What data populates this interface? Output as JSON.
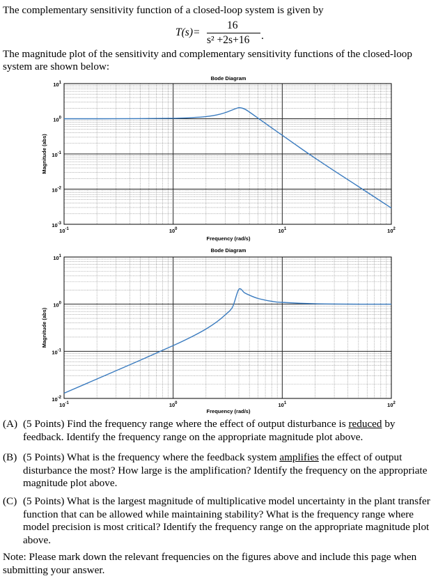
{
  "intro": "The complementary sensitivity function of a closed-loop system is given by",
  "equation": {
    "lhs": "T(s)=",
    "numerator": "16",
    "denominator": "s² +2s+16",
    "trail": "."
  },
  "description_line1": "The magnitude plot of the sensitivity and complementary sensitivity functions of the closed-loop",
  "description_line2": "system are shown below:",
  "plot_title": "Bode Diagram",
  "plot_xlabel": "Frequency (rad/s)",
  "plot_ylabel": "Magnitude (abs)",
  "chart_data": [
    {
      "type": "line",
      "title": "Bode Diagram",
      "xlabel": "Frequency (rad/s)",
      "ylabel": "Magnitude (abs)",
      "xscale": "log",
      "yscale": "log",
      "xlim": [
        0.1,
        100
      ],
      "ylim": [
        0.001,
        10
      ],
      "xticks": [
        "10^-1",
        "10^0",
        "10^1",
        "10^2"
      ],
      "yticks": [
        "10^1",
        "10^0",
        "10^-1",
        "10^-2",
        "10^-3"
      ],
      "grid": true,
      "series": [
        {
          "color": "#3a7bbf",
          "x": [
            0.1,
            0.3,
            1,
            1.5,
            2,
            2.5,
            3,
            3.5,
            4,
            4.5,
            5,
            6,
            8,
            10,
            15,
            20,
            30,
            50,
            100
          ],
          "y": [
            1.0,
            1.002,
            1.03,
            1.08,
            1.15,
            1.28,
            1.49,
            1.79,
            2.06,
            1.9,
            1.55,
            1.04,
            0.55,
            0.34,
            0.14,
            0.076,
            0.033,
            0.0118,
            0.0029
          ]
        }
      ]
    },
    {
      "type": "line",
      "title": "Bode Diagram",
      "xlabel": "Frequency (rad/s)",
      "ylabel": "Magnitude (abs)",
      "xscale": "log",
      "yscale": "log",
      "xlim": [
        0.1,
        100
      ],
      "ylim": [
        0.01,
        10
      ],
      "xticks": [
        "10^-1",
        "10^0",
        "10^1",
        "10^2"
      ],
      "yticks": [
        "10^1",
        "10^0",
        "10^-1",
        "10^-2"
      ],
      "grid": true,
      "series": [
        {
          "color": "#3a7bbf",
          "x": [
            0.1,
            0.2,
            0.5,
            1,
            1.5,
            2,
            2.5,
            3,
            3.5,
            4,
            4.5,
            5,
            6,
            8,
            10,
            20,
            50,
            100
          ],
          "y": [
            0.0129,
            0.0258,
            0.0647,
            0.132,
            0.207,
            0.297,
            0.417,
            0.594,
            0.865,
            2.06,
            1.75,
            1.55,
            1.32,
            1.15,
            1.09,
            1.02,
            1.0,
            1.0
          ]
        }
      ]
    }
  ],
  "questions": [
    {
      "label": "(A)",
      "parts": [
        {
          "t": "(5 Points) Find the frequency range where the effect of output disturbance is "
        },
        {
          "t": "reduced",
          "u": true
        },
        {
          "t": " by feedback.  Identify the frequency range on the appropriate magnitude plot above."
        }
      ]
    },
    {
      "label": "(B)",
      "parts": [
        {
          "t": "(5 Points) What is the frequency where the feedback system "
        },
        {
          "t": "amplifies",
          "u": true
        },
        {
          "t": " the effect of output disturbance the most? How large is the amplification?  Identify the frequency on the appropriate magnitude plot above."
        }
      ]
    },
    {
      "label": "(C)",
      "parts": [
        {
          "t": "(5 Points) What is the largest magnitude of multiplicative model uncertainty in the plant transfer function that can be allowed while maintaining stability? What is the frequency range where model precision is most critical?  Identify the frequency range on the appropriate magnitude plot above."
        }
      ]
    }
  ],
  "note": "Note:  Please mark down the relevant frequencies on the figures above and include this page when submitting your answer."
}
